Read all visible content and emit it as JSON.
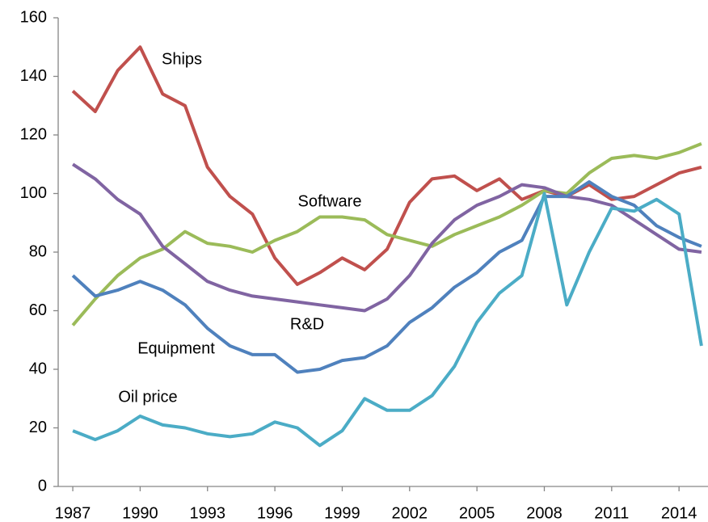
{
  "chart_data": {
    "type": "line",
    "x": [
      1987,
      1988,
      1989,
      1990,
      1991,
      1992,
      1993,
      1994,
      1995,
      1996,
      1997,
      1998,
      1999,
      2000,
      2001,
      2002,
      2003,
      2004,
      2005,
      2006,
      2007,
      2008,
      2009,
      2010,
      2011,
      2012,
      2013,
      2014,
      2015
    ],
    "series": [
      {
        "name": "Ships",
        "color": "#c0504d",
        "values": [
          135,
          128,
          142,
          150,
          134,
          130,
          109,
          99,
          93,
          78,
          69,
          73,
          78,
          74,
          81,
          97,
          105,
          106,
          101,
          105,
          98,
          101,
          99,
          103,
          98,
          99,
          103,
          107,
          109
        ]
      },
      {
        "name": "Software",
        "color": "#9bbb59",
        "values": [
          55,
          64,
          72,
          78,
          81,
          87,
          83,
          82,
          80,
          84,
          87,
          92,
          92,
          91,
          86,
          84,
          82,
          86,
          89,
          92,
          96,
          101,
          100,
          107,
          112,
          113,
          112,
          114,
          117
        ]
      },
      {
        "name": "R&D",
        "color": "#8064a2",
        "values": [
          110,
          105,
          98,
          93,
          82,
          76,
          70,
          67,
          65,
          64,
          63,
          62,
          61,
          60,
          64,
          72,
          83,
          91,
          96,
          99,
          103,
          102,
          99,
          98,
          96,
          91,
          86,
          81,
          80
        ]
      },
      {
        "name": "Equipment",
        "color": "#4f81bd",
        "values": [
          72,
          65,
          67,
          70,
          67,
          62,
          54,
          48,
          45,
          45,
          39,
          40,
          43,
          44,
          48,
          56,
          61,
          68,
          73,
          80,
          84,
          99,
          99,
          104,
          99,
          96,
          89,
          85,
          82
        ]
      },
      {
        "name": "Oil price",
        "color": "#4bacc6",
        "values": [
          19,
          16,
          19,
          24,
          21,
          20,
          18,
          17,
          18,
          22,
          20,
          14,
          19,
          30,
          26,
          26,
          31,
          41,
          56,
          66,
          72,
          100,
          62,
          80,
          95,
          94,
          98,
          93,
          48
        ]
      }
    ],
    "xlim": [
      1986.35,
      2015.29
    ],
    "xticks": [
      1987,
      1990,
      1993,
      1996,
      1999,
      2002,
      2005,
      2008,
      2011,
      2014
    ],
    "ylim": [
      0,
      160
    ],
    "yticks": [
      0,
      20,
      40,
      60,
      80,
      100,
      120,
      140,
      160
    ],
    "grid": false
  }
}
